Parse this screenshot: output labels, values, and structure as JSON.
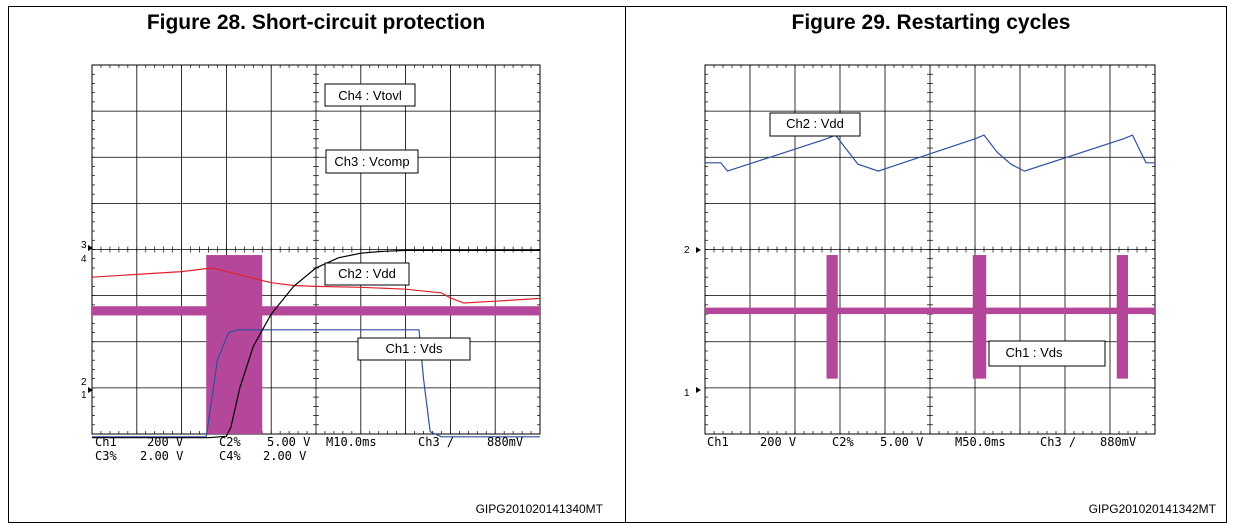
{
  "colors": {
    "vtovl": "#000000",
    "vcomp": "#2f4f9f",
    "vdd_fig28": "#e0202a",
    "vdd_fig29": "#2f4f9f",
    "vds": "#b5479a",
    "grid": "#000000"
  },
  "figures": [
    {
      "title": "Figure 28. Short-circuit protection",
      "code": "GIPG201020141340MT",
      "scope_text": {
        "row1": [
          "Ch1",
          "200 V",
          "C2%",
          "5.00 V",
          "M10.0ms",
          "Ch3 /",
          "880mV"
        ],
        "row2": [
          "C3%",
          "2.00 V",
          "C4%",
          "2.00 V"
        ]
      },
      "markers": [
        "3",
        "4",
        "2",
        "1"
      ]
    },
    {
      "title": "Figure 29. Restarting cycles",
      "code": "GIPG201020141342MT",
      "scope_text": {
        "row1": [
          "Ch1",
          "200 V",
          "C2%",
          "5.00 V",
          "M50.0ms",
          "Ch3 /",
          "880mV"
        ]
      },
      "markers": [
        "2",
        "1"
      ]
    }
  ],
  "chart_data": [
    {
      "type": "line",
      "title": "Figure 28. Short-circuit protection",
      "x_divisions": 10,
      "y_divisions": 8,
      "grid": true,
      "series": [
        {
          "name": "Ch4 : Vtovl",
          "x": [
            0,
            2.6,
            3.0,
            3.1,
            3.3,
            3.6,
            4.0,
            4.5,
            5.0,
            5.5,
            6.0,
            6.5,
            7.0,
            8.0,
            9.0,
            10.0
          ],
          "y": [
            -0.08,
            -0.08,
            -0.05,
            0.15,
            1.0,
            1.9,
            2.6,
            3.2,
            3.6,
            3.82,
            3.92,
            3.96,
            3.98,
            3.98,
            3.98,
            3.98
          ]
        },
        {
          "name": "Ch3 : Vcomp",
          "x": [
            0,
            2.55,
            2.65,
            2.8,
            3.05,
            3.25,
            7.3,
            7.4,
            7.55,
            7.8,
            10.0
          ],
          "y": [
            -0.06,
            -0.06,
            0.6,
            1.6,
            2.2,
            2.26,
            2.26,
            1.2,
            0.05,
            -0.06,
            -0.06
          ]
        },
        {
          "name": "Ch2 : Vdd",
          "x": [
            0,
            1.0,
            2.0,
            2.5,
            2.7,
            3.0,
            3.5,
            4.0,
            4.5,
            5.0,
            6.0,
            7.0,
            7.8,
            8.0,
            8.3,
            9.0,
            10.0
          ],
          "y": [
            3.4,
            3.46,
            3.52,
            3.58,
            3.6,
            3.52,
            3.4,
            3.28,
            3.22,
            3.2,
            3.18,
            3.14,
            3.06,
            2.95,
            2.84,
            2.88,
            2.94
          ]
        },
        {
          "name": "Ch1 : Vds",
          "baseline": 2.67,
          "band": [
            2.57,
            2.77
          ],
          "burst": {
            "from": 2.55,
            "to": 3.8,
            "low": 0.0,
            "high": 3.88
          }
        }
      ]
    },
    {
      "type": "line",
      "title": "Figure 29. Restarting cycles",
      "x_divisions": 10,
      "y_divisions": 8,
      "grid": true,
      "series": [
        {
          "name": "Ch2 : Vdd",
          "x": [
            0,
            0.35,
            0.5,
            2.7,
            2.9,
            3.2,
            3.4,
            3.85,
            6.0,
            6.2,
            6.5,
            6.8,
            7.1,
            9.3,
            9.5,
            9.8,
            10.0
          ],
          "y": [
            5.88,
            5.88,
            5.7,
            6.4,
            6.48,
            6.1,
            5.85,
            5.7,
            6.4,
            6.48,
            6.1,
            5.85,
            5.7,
            6.4,
            6.48,
            5.88,
            5.88
          ]
        },
        {
          "name": "Ch1 : Vds",
          "baseline": 2.67,
          "band": [
            2.6,
            2.74
          ],
          "bursts": [
            {
              "from": 2.7,
              "to": 2.95,
              "low": 1.2,
              "high": 3.88
            },
            {
              "from": 5.95,
              "to": 6.25,
              "low": 1.2,
              "high": 3.88
            },
            {
              "from": 9.15,
              "to": 9.4,
              "low": 1.2,
              "high": 3.88
            }
          ]
        }
      ]
    }
  ]
}
